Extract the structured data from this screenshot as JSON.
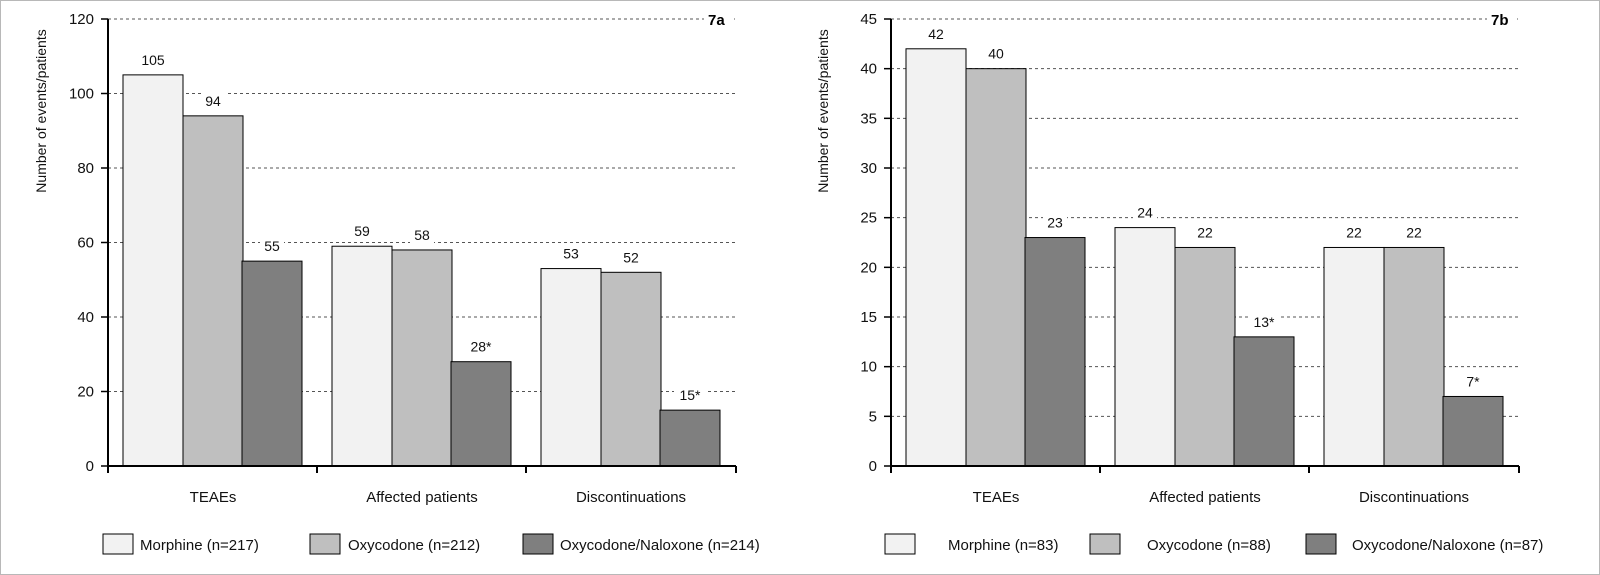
{
  "chart_data": [
    {
      "type": "bar",
      "panel_label": "7a",
      "ylabel": "Number of events/patients",
      "xlabel": "",
      "ylim": [
        0,
        120
      ],
      "yticks": [
        0,
        20,
        40,
        60,
        80,
        100,
        120
      ],
      "grid": "dashed horizontal",
      "legend_position": "bottom",
      "categories": [
        "TEAEs",
        "Affected patients",
        "Discontinuations"
      ],
      "series": [
        {
          "name": "Morphine (n=217)",
          "color": "#f2f2f2",
          "values": [
            105,
            59,
            53
          ],
          "labels": [
            "105",
            "59",
            "53"
          ]
        },
        {
          "name": "Oxycodone (n=212)",
          "color": "#bfbfbf",
          "values": [
            94,
            58,
            52
          ],
          "labels": [
            "94",
            "58",
            "52"
          ]
        },
        {
          "name": "Oxycodone/Naloxone (n=214)",
          "color": "#7f7f7f",
          "values": [
            55,
            28,
            15
          ],
          "labels": [
            "55",
            "28*",
            "15*"
          ]
        }
      ]
    },
    {
      "type": "bar",
      "panel_label": "7b",
      "ylabel": "Number of events/patients",
      "xlabel": "",
      "ylim": [
        0,
        45
      ],
      "yticks": [
        0,
        5,
        10,
        15,
        20,
        25,
        30,
        35,
        40,
        45
      ],
      "grid": "dashed horizontal",
      "legend_position": "bottom",
      "categories": [
        "TEAEs",
        "Affected patients",
        "Discontinuations"
      ],
      "series": [
        {
          "name": "Morphine (n=83)",
          "color": "#f2f2f2",
          "values": [
            42,
            24,
            22
          ],
          "labels": [
            "42",
            "24",
            "22"
          ]
        },
        {
          "name": "Oxycodone (n=88)",
          "color": "#bfbfbf",
          "values": [
            40,
            22,
            22
          ],
          "labels": [
            "40",
            "22",
            "22"
          ]
        },
        {
          "name": "Oxycodone/Naloxone (n=87)",
          "color": "#7f7f7f",
          "values": [
            23,
            13,
            7
          ],
          "labels": [
            "23",
            "13*",
            "7*"
          ]
        }
      ]
    }
  ]
}
